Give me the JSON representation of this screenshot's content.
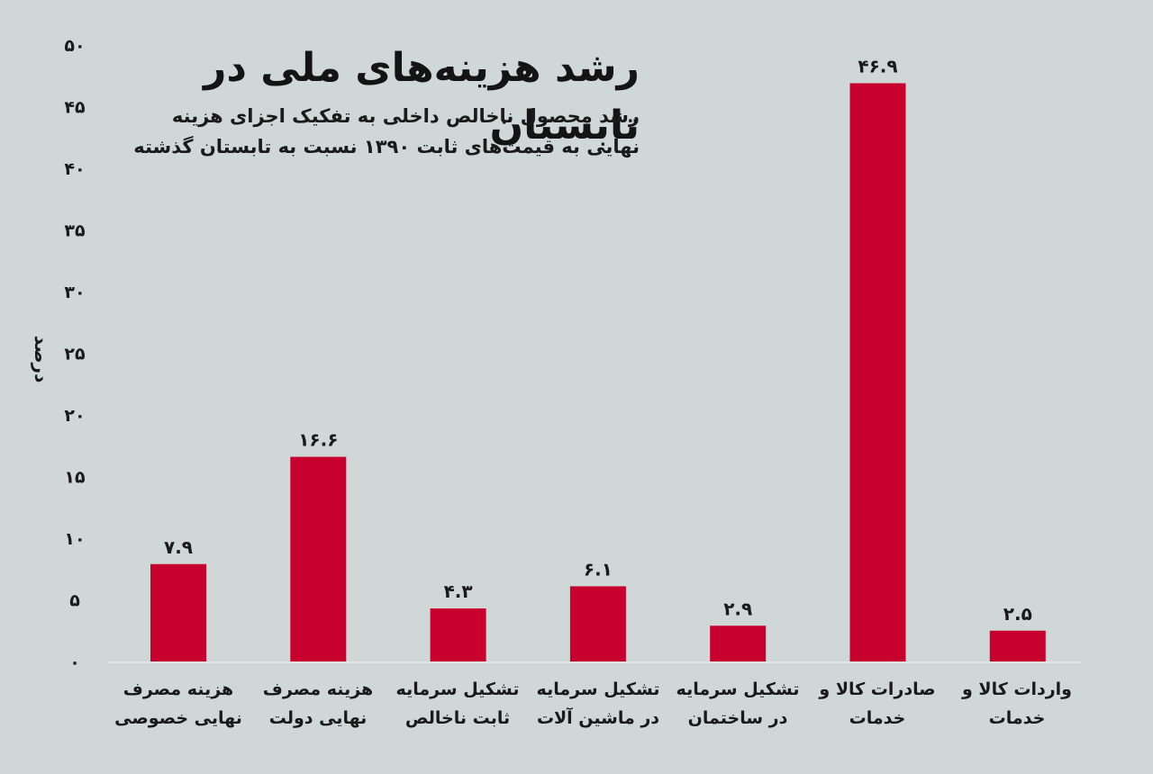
{
  "title": "رشد هزینه‌های ملی در تابستان",
  "subtitle": "رشد محصول ناخالص داخلی به تفکیک اجزای هزینه نهایی به قیمت‌های ثابت ۱۳۹۰ نسبت به تابستان گذشته",
  "chart_data": {
    "type": "bar",
    "ylabel": "درصد",
    "ylim": [
      0,
      50
    ],
    "yticks": [
      "۰",
      "۵",
      "۱۰",
      "۱۵",
      "۲۰",
      "۲۵",
      "۳۰",
      "۳۵",
      "۴۰",
      "۴۵",
      "۵۰"
    ],
    "categories": [
      "هزینه مصرف نهایی خصوصی",
      "هزینه مصرف نهایی دولت",
      "تشکیل سرمایه ثابت ناخالص",
      "تشکیل سرمایه در ماشین آلات",
      "تشکیل سرمایه در ساختمان",
      "صادرات کالا و خدمات",
      "واردات کالا و خدمات"
    ],
    "values": [
      7.9,
      16.6,
      4.3,
      6.1,
      2.9,
      46.9,
      2.5
    ],
    "value_labels": [
      "۷.۹",
      "۱۶.۶",
      "۴.۳",
      "۶.۱",
      "۲.۹",
      "۴۶.۹",
      "۲.۵"
    ],
    "bar_color": "#c8002d",
    "grid": false
  }
}
